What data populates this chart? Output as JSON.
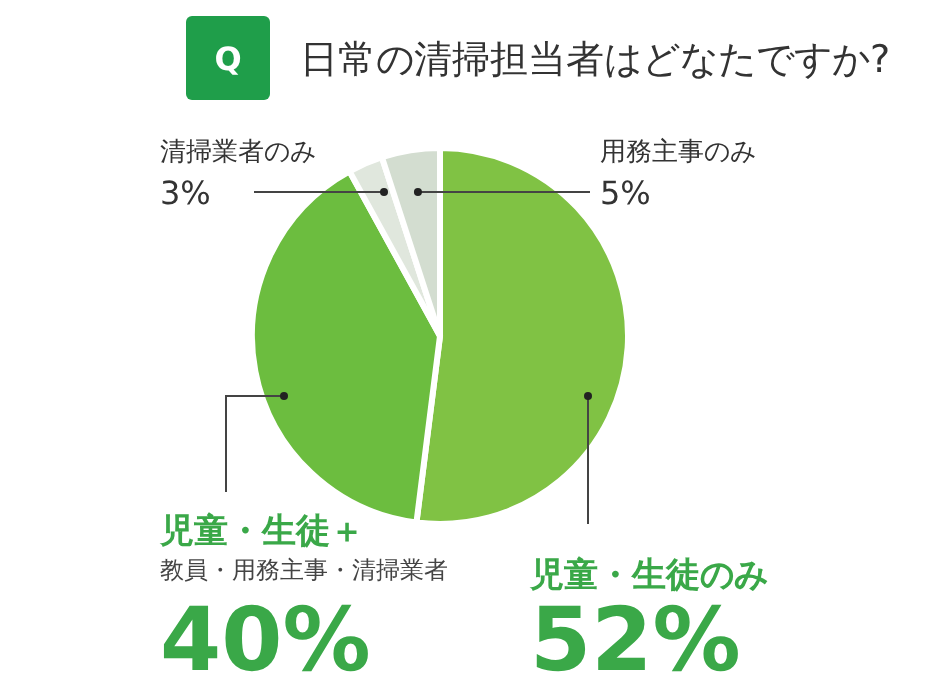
{
  "chart_data": {
    "type": "pie",
    "title": "日常の清掃担当者はどなたですか?",
    "annotations": [
      "Q"
    ],
    "categories": [
      "児童・生徒のみ",
      "児童・生徒＋教員・用務主事・清掃業者",
      "清掃業者のみ",
      "用務主事のみ"
    ],
    "values": [
      52,
      40,
      3,
      5
    ],
    "colors": [
      "#80c244",
      "#6cbd3f",
      "#e0e7dd",
      "#d3ddd0"
    ],
    "value_labels": [
      "52%",
      "40%",
      "3%",
      "5%"
    ]
  }
}
